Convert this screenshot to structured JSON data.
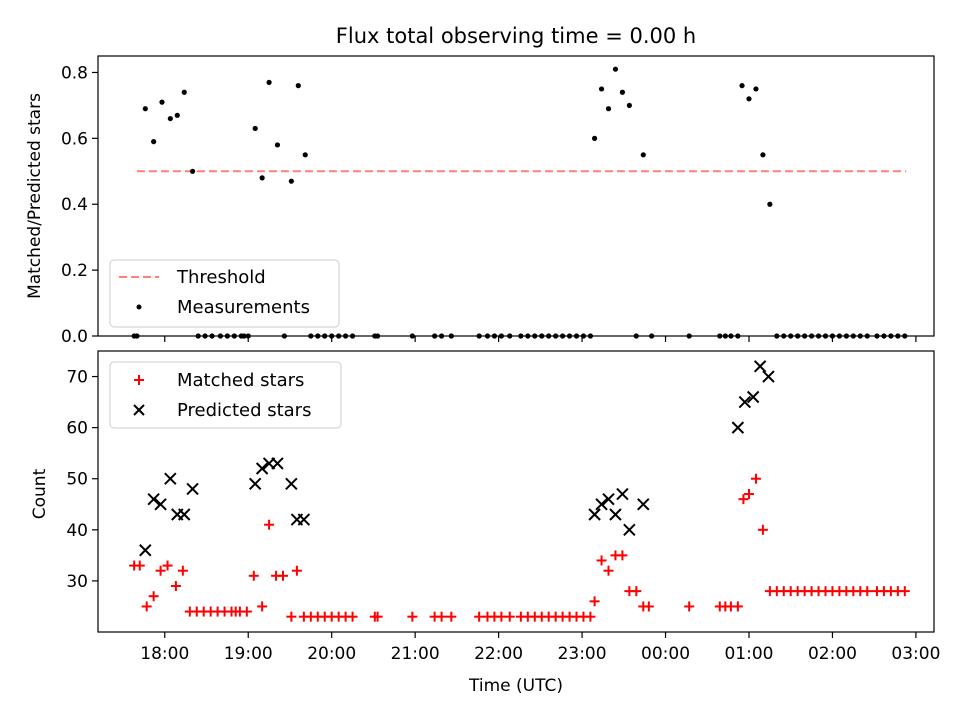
{
  "chart_data": [
    {
      "type": "scatter",
      "title": "Flux total observing time = 0.00 h",
      "xlabel": "",
      "ylabel": "Matched/Predicted stars",
      "xlim": [
        "17:12",
        "03:13"
      ],
      "ylim": [
        0,
        0.85
      ],
      "x_ticks": [
        "18:00",
        "19:00",
        "20:00",
        "21:00",
        "22:00",
        "23:00",
        "00:00",
        "01:00",
        "02:00",
        "03:00"
      ],
      "y_ticks": [
        "0.0",
        "0.2",
        "0.4",
        "0.6",
        "0.8"
      ],
      "grid": false,
      "legend": {
        "placement": "lower left"
      },
      "series": [
        {
          "name": "Threshold",
          "style": "dashed-line",
          "color": "#ff7f7f",
          "points": [
            [
              "17:40",
              0.5
            ],
            [
              "02:53",
              0.5
            ]
          ]
        },
        {
          "name": "Measurements",
          "style": "dot",
          "color": "#000000",
          "points": [
            [
              "17:38",
              0.0
            ],
            [
              "17:40",
              0.0
            ],
            [
              "17:46",
              0.69
            ],
            [
              "17:52",
              0.59
            ],
            [
              "17:58",
              0.71
            ],
            [
              "18:04",
              0.66
            ],
            [
              "18:09",
              0.67
            ],
            [
              "18:14",
              0.74
            ],
            [
              "18:20",
              0.5
            ],
            [
              "18:24",
              0.0
            ],
            [
              "18:29",
              0.0
            ],
            [
              "18:34",
              0.0
            ],
            [
              "18:40",
              0.0
            ],
            [
              "18:45",
              0.0
            ],
            [
              "18:50",
              0.0
            ],
            [
              "18:55",
              0.0
            ],
            [
              "18:57",
              0.0
            ],
            [
              "19:00",
              0.0
            ],
            [
              "19:05",
              0.63
            ],
            [
              "19:10",
              0.48
            ],
            [
              "19:15",
              0.77
            ],
            [
              "19:21",
              0.58
            ],
            [
              "19:26",
              0.0
            ],
            [
              "19:31",
              0.47
            ],
            [
              "19:36",
              0.76
            ],
            [
              "19:41",
              0.55
            ],
            [
              "19:45",
              0.0
            ],
            [
              "19:50",
              0.0
            ],
            [
              "19:55",
              0.0
            ],
            [
              "20:00",
              0.0
            ],
            [
              "20:05",
              0.0
            ],
            [
              "20:10",
              0.0
            ],
            [
              "20:15",
              0.0
            ],
            [
              "20:31",
              0.0
            ],
            [
              "20:33",
              0.0
            ],
            [
              "20:58",
              0.0
            ],
            [
              "21:14",
              0.0
            ],
            [
              "21:19",
              0.0
            ],
            [
              "21:26",
              0.0
            ],
            [
              "21:46",
              0.0
            ],
            [
              "21:52",
              0.0
            ],
            [
              "21:57",
              0.0
            ],
            [
              "22:02",
              0.0
            ],
            [
              "22:08",
              0.0
            ],
            [
              "22:16",
              0.0
            ],
            [
              "22:21",
              0.0
            ],
            [
              "22:26",
              0.0
            ],
            [
              "22:31",
              0.0
            ],
            [
              "22:36",
              0.0
            ],
            [
              "22:41",
              0.0
            ],
            [
              "22:46",
              0.0
            ],
            [
              "22:51",
              0.0
            ],
            [
              "22:56",
              0.0
            ],
            [
              "23:01",
              0.0
            ],
            [
              "23:06",
              0.0
            ],
            [
              "23:09",
              0.6
            ],
            [
              "23:14",
              0.75
            ],
            [
              "23:19",
              0.69
            ],
            [
              "23:24",
              0.81
            ],
            [
              "23:29",
              0.74
            ],
            [
              "23:34",
              0.7
            ],
            [
              "23:39",
              0.0
            ],
            [
              "23:44",
              0.55
            ],
            [
              "23:50",
              0.0
            ],
            [
              "00:17",
              0.0
            ],
            [
              "00:39",
              0.0
            ],
            [
              "00:43",
              0.0
            ],
            [
              "00:47",
              0.0
            ],
            [
              "00:52",
              0.0
            ],
            [
              "00:55",
              0.76
            ],
            [
              "01:00",
              0.72
            ],
            [
              "01:05",
              0.75
            ],
            [
              "01:10",
              0.55
            ],
            [
              "01:15",
              0.4
            ],
            [
              "01:20",
              0.0
            ],
            [
              "01:25",
              0.0
            ],
            [
              "01:30",
              0.0
            ],
            [
              "01:35",
              0.0
            ],
            [
              "01:40",
              0.0
            ],
            [
              "01:45",
              0.0
            ],
            [
              "01:50",
              0.0
            ],
            [
              "01:55",
              0.0
            ],
            [
              "02:00",
              0.0
            ],
            [
              "02:05",
              0.0
            ],
            [
              "02:10",
              0.0
            ],
            [
              "02:15",
              0.0
            ],
            [
              "02:20",
              0.0
            ],
            [
              "02:25",
              0.0
            ],
            [
              "02:32",
              0.0
            ],
            [
              "02:37",
              0.0
            ],
            [
              "02:42",
              0.0
            ],
            [
              "02:47",
              0.0
            ],
            [
              "02:52",
              0.0
            ]
          ]
        }
      ]
    },
    {
      "type": "scatter",
      "title": "",
      "xlabel": "Time (UTC)",
      "ylabel": "Count",
      "xlim": [
        "17:12",
        "03:13"
      ],
      "ylim": [
        20,
        75
      ],
      "x_ticks": [
        "18:00",
        "19:00",
        "20:00",
        "21:00",
        "22:00",
        "23:00",
        "00:00",
        "01:00",
        "02:00",
        "03:00"
      ],
      "y_ticks": [
        "30",
        "40",
        "50",
        "60",
        "70"
      ],
      "grid": false,
      "legend": {
        "placement": "upper left"
      },
      "series": [
        {
          "name": "Matched stars",
          "style": "plus",
          "color": "#ff0000",
          "points": [
            [
              "17:38",
              33
            ],
            [
              "17:42",
              33
            ],
            [
              "17:47",
              25
            ],
            [
              "17:52",
              27
            ],
            [
              "17:57",
              32
            ],
            [
              "18:02",
              33
            ],
            [
              "18:08",
              29
            ],
            [
              "18:13",
              32
            ],
            [
              "18:18",
              24
            ],
            [
              "18:23",
              24
            ],
            [
              "18:28",
              24
            ],
            [
              "18:33",
              24
            ],
            [
              "18:38",
              24
            ],
            [
              "18:43",
              24
            ],
            [
              "18:48",
              24
            ],
            [
              "18:51",
              24
            ],
            [
              "18:54",
              24
            ],
            [
              "18:59",
              24
            ],
            [
              "19:04",
              31
            ],
            [
              "19:10",
              25
            ],
            [
              "19:15",
              41
            ],
            [
              "19:20",
              31
            ],
            [
              "19:25",
              31
            ],
            [
              "19:31",
              23
            ],
            [
              "19:35",
              32
            ],
            [
              "19:40",
              23
            ],
            [
              "19:45",
              23
            ],
            [
              "19:50",
              23
            ],
            [
              "19:55",
              23
            ],
            [
              "20:00",
              23
            ],
            [
              "20:05",
              23
            ],
            [
              "20:10",
              23
            ],
            [
              "20:15",
              23
            ],
            [
              "20:31",
              23
            ],
            [
              "20:33",
              23
            ],
            [
              "20:58",
              23
            ],
            [
              "21:14",
              23
            ],
            [
              "21:19",
              23
            ],
            [
              "21:26",
              23
            ],
            [
              "21:46",
              23
            ],
            [
              "21:52",
              23
            ],
            [
              "21:57",
              23
            ],
            [
              "22:02",
              23
            ],
            [
              "22:08",
              23
            ],
            [
              "22:16",
              23
            ],
            [
              "22:21",
              23
            ],
            [
              "22:26",
              23
            ],
            [
              "22:31",
              23
            ],
            [
              "22:36",
              23
            ],
            [
              "22:41",
              23
            ],
            [
              "22:46",
              23
            ],
            [
              "22:51",
              23
            ],
            [
              "22:56",
              23
            ],
            [
              "23:01",
              23
            ],
            [
              "23:06",
              23
            ],
            [
              "23:09",
              26
            ],
            [
              "23:14",
              34
            ],
            [
              "23:19",
              32
            ],
            [
              "23:24",
              35
            ],
            [
              "23:29",
              35
            ],
            [
              "23:34",
              28
            ],
            [
              "23:39",
              28
            ],
            [
              "23:44",
              25
            ],
            [
              "23:48",
              25
            ],
            [
              "00:17",
              25
            ],
            [
              "00:39",
              25
            ],
            [
              "00:43",
              25
            ],
            [
              "00:47",
              25
            ],
            [
              "00:52",
              25
            ],
            [
              "00:56",
              46
            ],
            [
              "01:00",
              47
            ],
            [
              "01:05",
              50
            ],
            [
              "01:10",
              40
            ],
            [
              "01:15",
              28
            ],
            [
              "01:20",
              28
            ],
            [
              "01:25",
              28
            ],
            [
              "01:30",
              28
            ],
            [
              "01:35",
              28
            ],
            [
              "01:40",
              28
            ],
            [
              "01:45",
              28
            ],
            [
              "01:50",
              28
            ],
            [
              "01:55",
              28
            ],
            [
              "02:00",
              28
            ],
            [
              "02:05",
              28
            ],
            [
              "02:10",
              28
            ],
            [
              "02:15",
              28
            ],
            [
              "02:20",
              28
            ],
            [
              "02:25",
              28
            ],
            [
              "02:32",
              28
            ],
            [
              "02:37",
              28
            ],
            [
              "02:42",
              28
            ],
            [
              "02:47",
              28
            ],
            [
              "02:52",
              28
            ]
          ]
        },
        {
          "name": "Predicted stars",
          "style": "x",
          "color": "#000000",
          "points": [
            [
              "17:46",
              36
            ],
            [
              "17:52",
              46
            ],
            [
              "17:57",
              45
            ],
            [
              "18:04",
              50
            ],
            [
              "18:09",
              43
            ],
            [
              "18:14",
              43
            ],
            [
              "18:20",
              48
            ],
            [
              "19:05",
              49
            ],
            [
              "19:10",
              52
            ],
            [
              "19:15",
              53
            ],
            [
              "19:21",
              53
            ],
            [
              "19:31",
              49
            ],
            [
              "19:35",
              42
            ],
            [
              "19:40",
              42
            ],
            [
              "23:09",
              43
            ],
            [
              "23:14",
              45
            ],
            [
              "23:19",
              46
            ],
            [
              "23:24",
              43
            ],
            [
              "23:29",
              47
            ],
            [
              "23:34",
              40
            ],
            [
              "23:44",
              45
            ],
            [
              "00:52",
              60
            ],
            [
              "00:57",
              65
            ],
            [
              "01:03",
              66
            ],
            [
              "01:08",
              72
            ],
            [
              "01:14",
              70
            ]
          ]
        }
      ]
    }
  ]
}
